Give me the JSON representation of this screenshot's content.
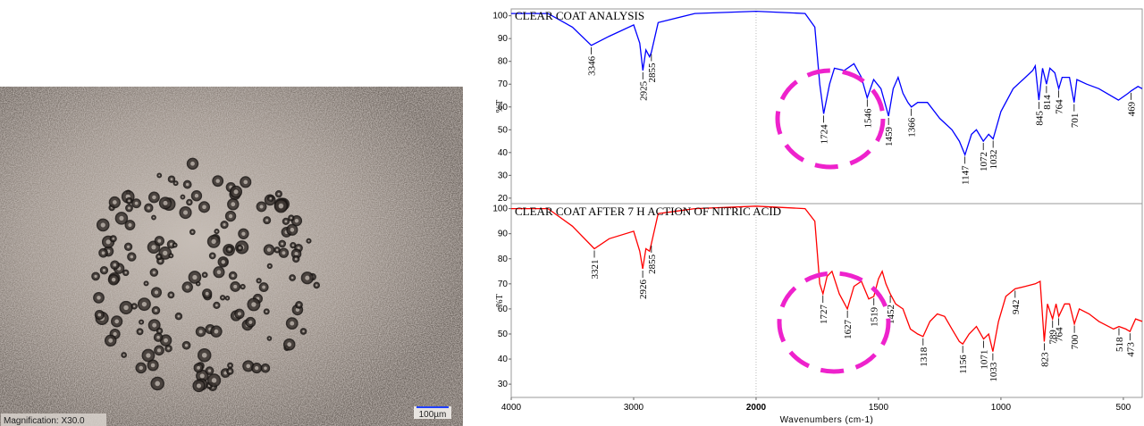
{
  "image": {
    "caption": "Magnification: X30.0",
    "scale_bar": "100µm"
  },
  "chart_data": [
    {
      "type": "line",
      "title": "CLEAR COAT ANALYSIS",
      "ylabel": "%T",
      "xlim": [
        4000,
        423
      ],
      "x_scale_break": 2000,
      "ylim": [
        17.6,
        103
      ],
      "yticks": [
        20,
        30,
        40,
        50,
        60,
        70,
        80,
        90,
        100
      ],
      "color": "#0000ff",
      "x": [
        4000,
        3700,
        3500,
        3346,
        3200,
        3000,
        2950,
        2925,
        2900,
        2870,
        2855,
        2800,
        2500,
        2000,
        1800,
        1760,
        1740,
        1724,
        1700,
        1680,
        1640,
        1600,
        1570,
        1546,
        1520,
        1490,
        1459,
        1440,
        1420,
        1400,
        1380,
        1366,
        1340,
        1300,
        1250,
        1200,
        1170,
        1147,
        1120,
        1100,
        1072,
        1050,
        1032,
        1000,
        950,
        900,
        870,
        860,
        845,
        830,
        814,
        800,
        780,
        764,
        750,
        720,
        701,
        690,
        650,
        600,
        520,
        480,
        469,
        440,
        423
      ],
      "values": [
        101,
        101,
        95,
        87,
        91,
        96,
        88,
        76,
        85,
        82,
        84,
        97,
        101,
        102,
        101,
        95,
        70,
        57,
        70,
        77,
        76,
        79,
        73,
        64,
        72,
        68,
        56,
        68,
        73,
        66,
        62,
        60,
        62,
        62,
        55,
        50,
        45,
        39,
        48,
        50,
        45,
        48,
        46,
        58,
        68,
        73,
        76,
        78,
        63,
        77,
        70,
        77,
        75,
        68,
        73,
        73,
        62,
        72,
        70,
        68,
        63,
        66,
        67,
        69,
        68
      ],
      "peak_labels": [
        3346,
        2925,
        2855,
        1724,
        1546,
        1459,
        1366,
        1147,
        1072,
        1032,
        845,
        814,
        764,
        701,
        469
      ]
    },
    {
      "type": "line",
      "title": "CLEAR COAT AFTER 7 H ACTION OF NITRIC ACID",
      "ylabel": "%T",
      "xlabel": "Wavenumbers (cm-1)",
      "xlim": [
        4000,
        423
      ],
      "x_scale_break": 2000,
      "xticks": [
        4000,
        3000,
        2000,
        1500,
        1000,
        500
      ],
      "ylim": [
        24.7,
        102
      ],
      "yticks": [
        30,
        40,
        50,
        60,
        70,
        80,
        90,
        100
      ],
      "color": "#ff0000",
      "x": [
        4000,
        3700,
        3500,
        3321,
        3200,
        3000,
        2950,
        2926,
        2900,
        2870,
        2855,
        2800,
        2500,
        2000,
        1800,
        1760,
        1740,
        1727,
        1710,
        1690,
        1660,
        1627,
        1600,
        1570,
        1540,
        1519,
        1500,
        1485,
        1470,
        1452,
        1430,
        1400,
        1370,
        1340,
        1318,
        1290,
        1260,
        1230,
        1200,
        1170,
        1156,
        1130,
        1100,
        1071,
        1050,
        1033,
        1010,
        980,
        942,
        900,
        860,
        840,
        823,
        810,
        789,
        775,
        764,
        740,
        720,
        700,
        680,
        640,
        600,
        540,
        518,
        490,
        473,
        450,
        423
      ],
      "values": [
        100,
        100,
        93,
        84,
        88,
        91,
        83,
        76,
        84,
        83,
        86,
        98,
        100,
        101,
        100,
        95,
        70,
        66,
        73,
        75,
        66,
        60,
        69,
        71,
        64,
        65,
        72,
        75,
        70,
        66,
        62,
        60,
        52,
        50,
        49,
        55,
        58,
        57,
        52,
        47,
        46,
        50,
        53,
        48,
        50,
        43,
        55,
        65,
        68,
        69,
        70,
        71,
        47,
        62,
        56,
        62,
        57,
        62,
        62,
        54,
        60,
        58,
        55,
        52,
        53,
        52,
        51,
        56,
        55
      ],
      "peak_labels": [
        3321,
        2926,
        2855,
        1727,
        1627,
        1519,
        1452,
        1318,
        1156,
        1071,
        1033,
        942,
        823,
        789,
        764,
        700,
        518,
        473
      ]
    }
  ]
}
